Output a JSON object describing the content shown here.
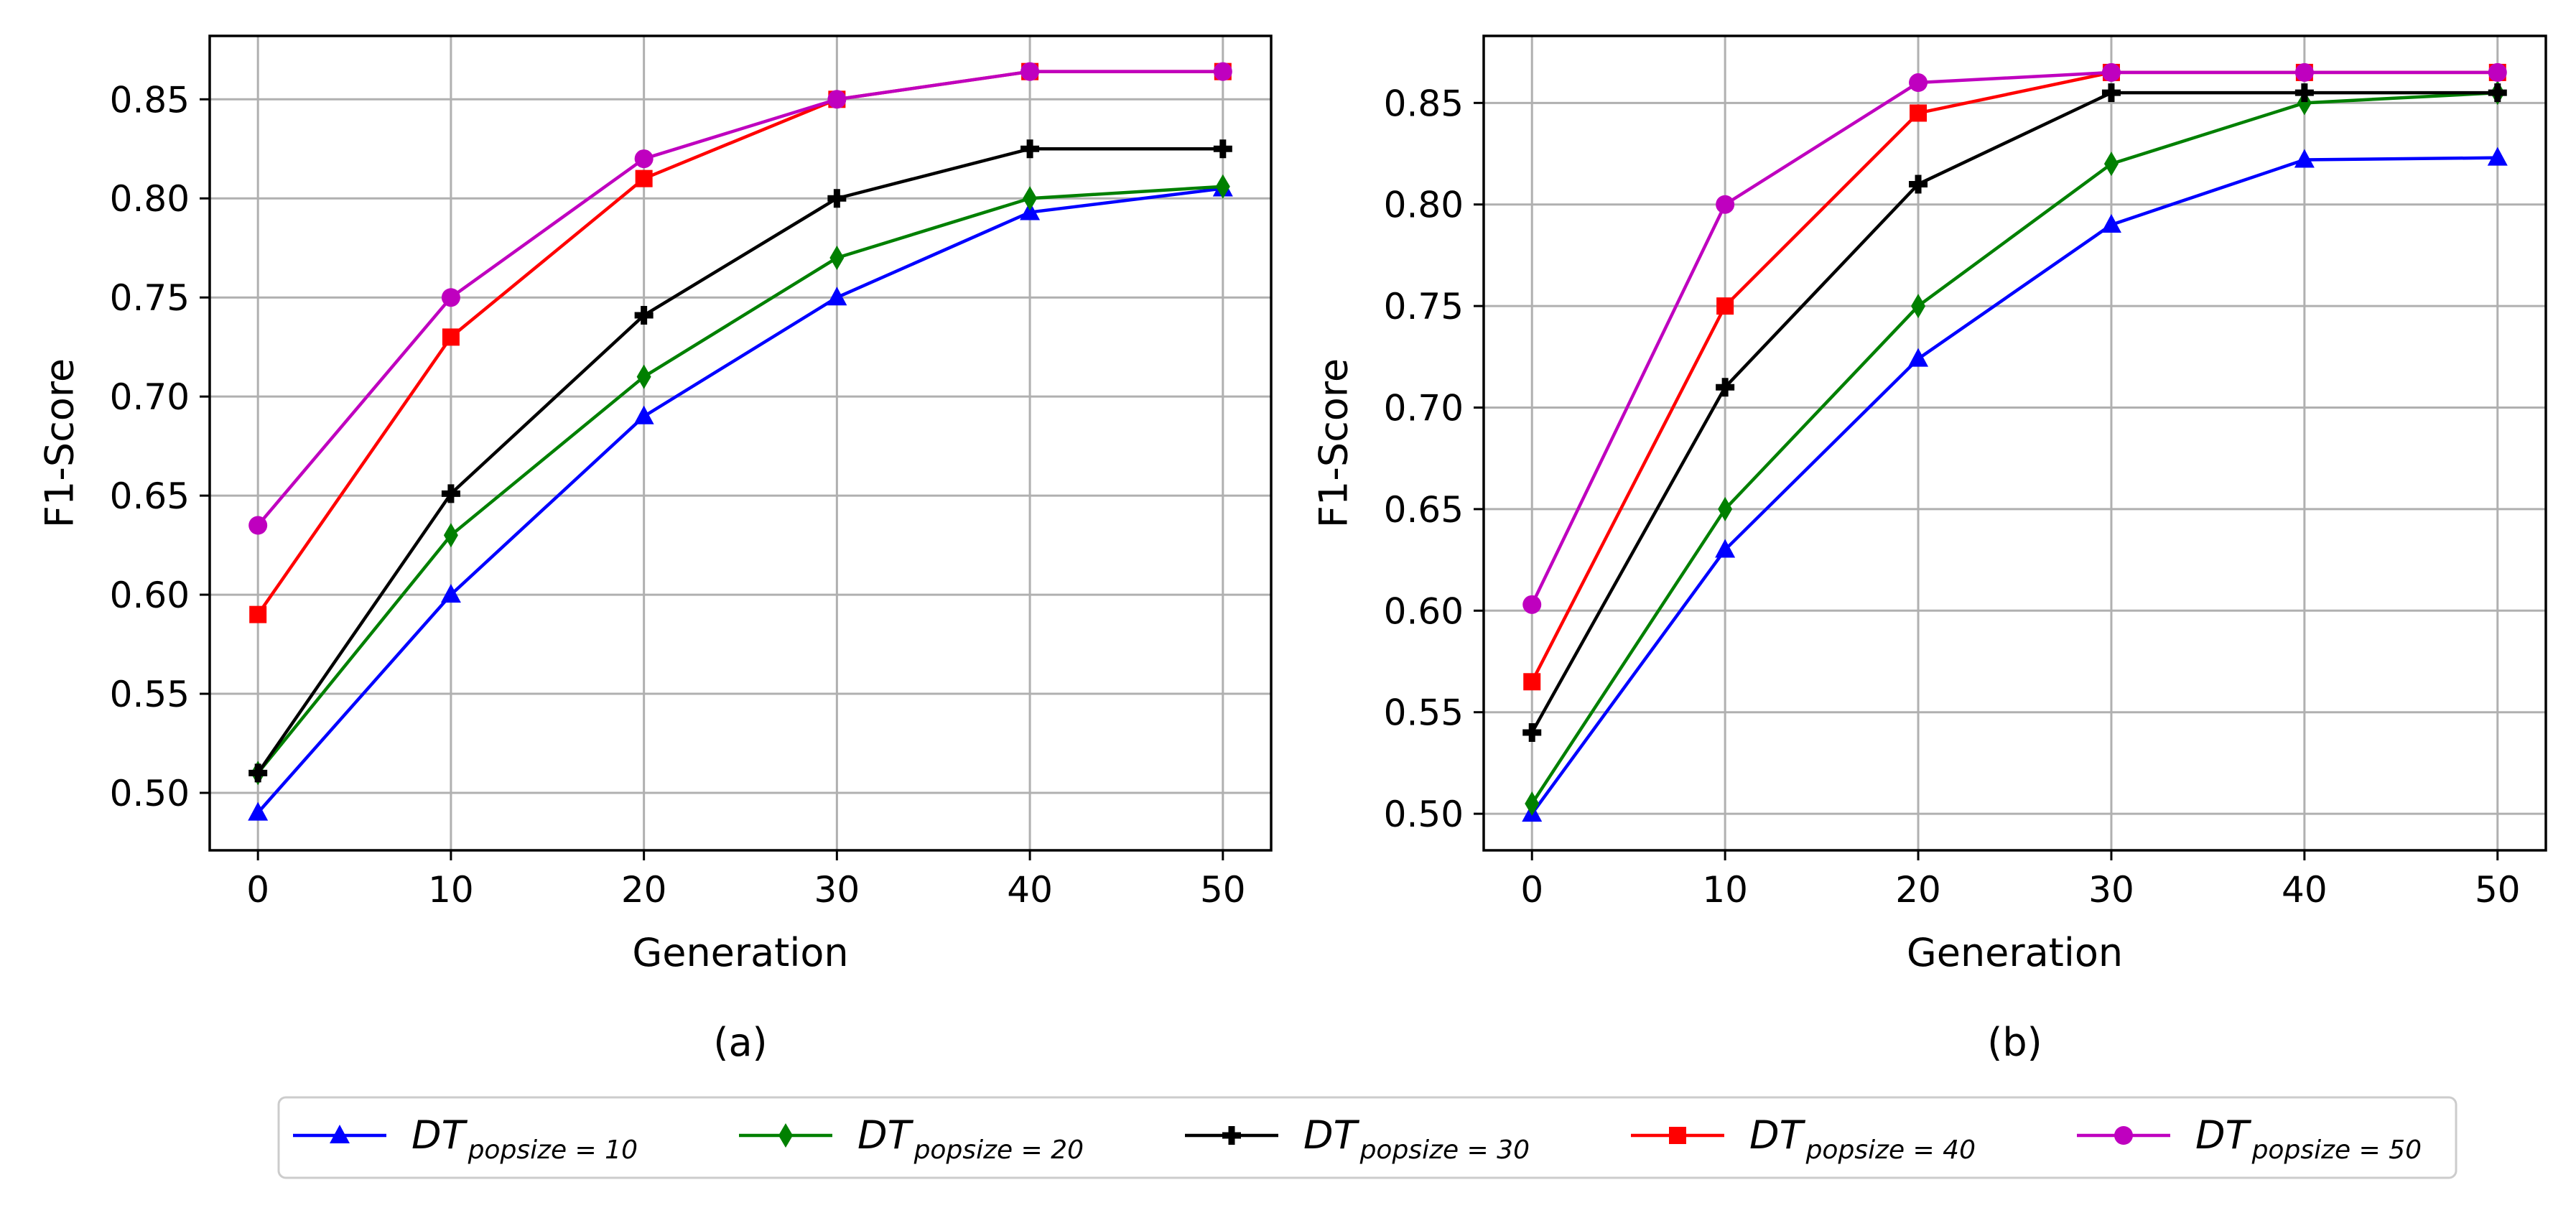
{
  "chart_data": [
    {
      "type": "line",
      "caption": "(a)",
      "xlabel": "Generation",
      "ylabel": "F1-Score",
      "x": [
        0,
        10,
        20,
        30,
        40,
        50
      ],
      "xticks": [
        "0",
        "10",
        "20",
        "30",
        "40",
        "50"
      ],
      "xlim": [
        -2.5,
        52.5
      ],
      "yticks": [
        "0.50",
        "0.55",
        "0.60",
        "0.65",
        "0.70",
        "0.75",
        "0.80",
        "0.85"
      ],
      "ylim": [
        0.471,
        0.882
      ],
      "grid": true,
      "series": [
        {
          "key": "s10",
          "values": [
            0.49,
            0.6,
            0.69,
            0.75,
            0.793,
            0.805
          ]
        },
        {
          "key": "s20",
          "values": [
            0.51,
            0.63,
            0.71,
            0.77,
            0.8,
            0.806
          ]
        },
        {
          "key": "s30",
          "values": [
            0.51,
            0.651,
            0.741,
            0.8,
            0.825,
            0.825
          ]
        },
        {
          "key": "s40",
          "values": [
            0.59,
            0.73,
            0.81,
            0.85,
            0.864,
            0.864
          ]
        },
        {
          "key": "s50",
          "values": [
            0.635,
            0.75,
            0.82,
            0.85,
            0.864,
            0.864
          ]
        }
      ]
    },
    {
      "type": "line",
      "caption": "(b)",
      "xlabel": "Generation",
      "ylabel": "F1-Score",
      "x": [
        0,
        10,
        20,
        30,
        40,
        50
      ],
      "xticks": [
        "0",
        "10",
        "20",
        "30",
        "40",
        "50"
      ],
      "xlim": [
        -2.5,
        52.5
      ],
      "yticks": [
        "0.50",
        "0.55",
        "0.60",
        "0.65",
        "0.70",
        "0.75",
        "0.80",
        "0.85"
      ],
      "ylim": [
        0.482,
        0.883
      ],
      "grid": true,
      "series": [
        {
          "key": "s10",
          "values": [
            0.5,
            0.63,
            0.724,
            0.79,
            0.822,
            0.823
          ]
        },
        {
          "key": "s20",
          "values": [
            0.505,
            0.65,
            0.75,
            0.82,
            0.85,
            0.855
          ]
        },
        {
          "key": "s30",
          "values": [
            0.54,
            0.71,
            0.81,
            0.855,
            0.855,
            0.855
          ]
        },
        {
          "key": "s40",
          "values": [
            0.565,
            0.75,
            0.845,
            0.865,
            0.865,
            0.865
          ]
        },
        {
          "key": "s50",
          "values": [
            0.603,
            0.8,
            0.86,
            0.865,
            0.865,
            0.865
          ]
        }
      ]
    }
  ],
  "legend": {
    "placement": "bottom-center",
    "entries": [
      {
        "key": "s10",
        "base": "DT",
        "sub": "popsize = 10",
        "color": "#0000ff",
        "marker": "triangle"
      },
      {
        "key": "s20",
        "base": "DT",
        "sub": "popsize = 20",
        "color": "#008000",
        "marker": "diamond"
      },
      {
        "key": "s30",
        "base": "DT",
        "sub": "popsize = 30",
        "color": "#000000",
        "marker": "plus"
      },
      {
        "key": "s40",
        "base": "DT",
        "sub": "popsize = 40",
        "color": "#ff0000",
        "marker": "square"
      },
      {
        "key": "s50",
        "base": "DT",
        "sub": "popsize = 50",
        "color": "#bf00bf",
        "marker": "circle"
      }
    ]
  }
}
